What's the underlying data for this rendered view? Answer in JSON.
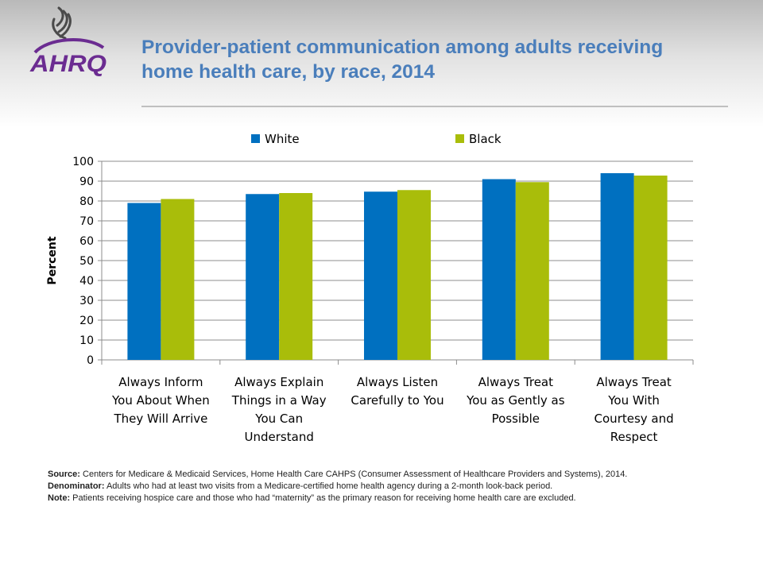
{
  "header": {
    "title_line1": "Provider-patient communication among adults receiving",
    "title_line2": "home health care, by race, 2014",
    "logo_text": "AHRQ"
  },
  "colors": {
    "title": "#4a7ebb",
    "series_white": "#0070c0",
    "series_black": "#a9bd0a",
    "logo_purple": "#6b2c91"
  },
  "chart_data": {
    "type": "bar",
    "title": "",
    "xlabel": "",
    "ylabel": "Percent",
    "ylim": [
      0,
      100
    ],
    "yticks": [
      0,
      10,
      20,
      30,
      40,
      50,
      60,
      70,
      80,
      90,
      100
    ],
    "grid": true,
    "legend_position": "top",
    "categories": [
      [
        "Always Inform",
        "You About When",
        "They Will Arrive"
      ],
      [
        "Always Explain",
        "Things in a Way",
        "You Can",
        "Understand"
      ],
      [
        "Always Listen",
        "Carefully to You"
      ],
      [
        "Always Treat",
        "You as Gently as",
        "Possible"
      ],
      [
        "Always Treat",
        "You With",
        "Courtesy and",
        "Respect"
      ]
    ],
    "series": [
      {
        "name": "White",
        "color": "#0070c0",
        "values": [
          79,
          83.5,
          84.7,
          91,
          94
        ]
      },
      {
        "name": "Black",
        "color": "#a9bd0a",
        "values": [
          81,
          84,
          85.5,
          89.5,
          92.8
        ]
      }
    ]
  },
  "footer": {
    "source_label": "Source:",
    "source_text": "Centers for Medicare & Medicaid Services, Home Health Care CAHPS (Consumer Assessment of Healthcare Providers and Systems), 2014.",
    "denominator_label": "Denominator:",
    "denominator_text": "Adults who had at least two visits from a Medicare-certified home health agency during a 2-month look-back period.",
    "note_label": "Note:",
    "note_text": "Patients receiving hospice care and those who had “maternity” as the primary reason for receiving home health care are excluded."
  }
}
